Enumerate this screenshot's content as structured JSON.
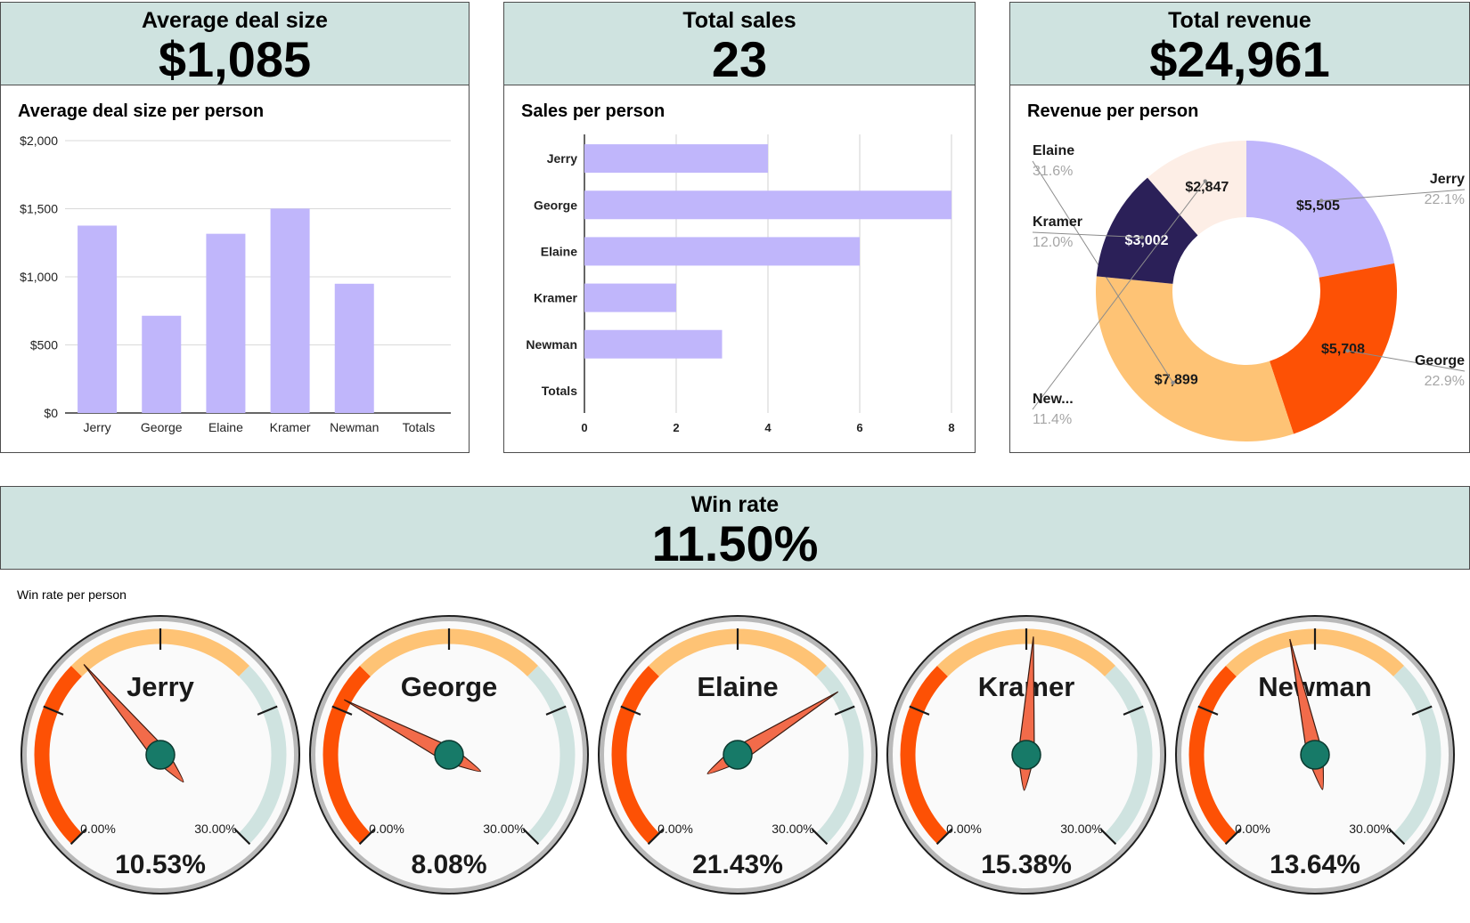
{
  "kpis": {
    "avg_deal": {
      "label": "Average deal size",
      "value": "$1,085"
    },
    "total_sales": {
      "label": "Total sales",
      "value": "23"
    },
    "total_revenue": {
      "label": "Total revenue",
      "value": "$24,961"
    },
    "win_rate": {
      "label": "Win rate",
      "value": "11.50%"
    }
  },
  "colors": {
    "kpi_bg": "#cfe3e0",
    "bar": "#c0b6fb",
    "gauge_red": "#fd5105",
    "gauge_orange": "#fec375",
    "gauge_teal": "#cfe3e0",
    "needle": "#f26b4a",
    "hub": "#177a68"
  },
  "chart_data": [
    {
      "type": "bar",
      "title": "Average deal size per person",
      "categories": [
        "Jerry",
        "George",
        "Elaine",
        "Kramer",
        "Newman",
        "Totals"
      ],
      "values": [
        1376,
        714,
        1316,
        1501,
        949,
        null
      ],
      "ylim": [
        0,
        2000
      ],
      "yticks": [
        "$0",
        "$500",
        "$1,000",
        "$1,500",
        "$2,000"
      ],
      "ytick_values": [
        0,
        500,
        1000,
        1500,
        2000
      ],
      "grid": true
    },
    {
      "type": "bar",
      "orientation": "horizontal",
      "title": "Sales per person",
      "categories": [
        "Jerry",
        "George",
        "Elaine",
        "Kramer",
        "Newman",
        "Totals"
      ],
      "values": [
        4,
        8,
        6,
        2,
        3,
        null
      ],
      "xlim": [
        0,
        8
      ],
      "xticks": [
        "0",
        "2",
        "4",
        "6",
        "8"
      ],
      "xtick_values": [
        0,
        2,
        4,
        6,
        8
      ],
      "grid": true
    },
    {
      "type": "pie",
      "donut": true,
      "title": "Revenue per person",
      "slices": [
        {
          "name": "Jerry",
          "value": 5505,
          "value_label": "$5,505",
          "pct": "22.1%",
          "color": "#c0b6fb",
          "label_color": "#1a1a1a"
        },
        {
          "name": "George",
          "value": 5708,
          "value_label": "$5,708",
          "pct": "22.9%",
          "color": "#fd5105",
          "label_color": "#1a1a1a"
        },
        {
          "name": "Elaine",
          "value": 7899,
          "value_label": "$7,899",
          "pct": "31.6%",
          "color": "#fec375",
          "label_color": "#1a1a1a"
        },
        {
          "name": "Kramer",
          "value": 3002,
          "value_label": "$3,002",
          "pct": "12.0%",
          "color": "#2b2058",
          "label_color": "#ffffff"
        },
        {
          "name": "New...",
          "value": 2847,
          "value_label": "$2,847",
          "pct": "11.4%",
          "color": "#fdeee6",
          "label_color": "#1a1a1a"
        }
      ]
    },
    {
      "type": "gauge",
      "title": "Win rate per person",
      "min": 0,
      "max": 0.3,
      "min_label": "0.00%",
      "max_label": "30.00%",
      "gauges": [
        {
          "name": "Jerry",
          "value": 0.1053,
          "value_label": "10.53%"
        },
        {
          "name": "George",
          "value": 0.0808,
          "value_label": "8.08%"
        },
        {
          "name": "Elaine",
          "value": 0.2143,
          "value_label": "21.43%"
        },
        {
          "name": "Kramer",
          "value": 0.1538,
          "value_label": "15.38%"
        },
        {
          "name": "Newman",
          "value": 0.1364,
          "value_label": "13.64%"
        }
      ]
    }
  ]
}
